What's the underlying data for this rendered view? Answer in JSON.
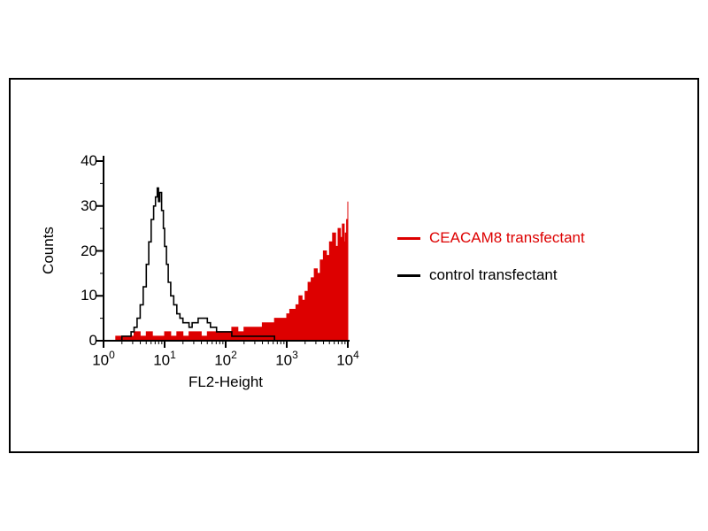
{
  "chart_data": {
    "type": "histogram",
    "title": "",
    "xlabel": "FL2-Height",
    "ylabel": "Counts",
    "x_scale": "log10",
    "x_range_decades": [
      0,
      4
    ],
    "ylim": [
      0,
      40
    ],
    "grid": false,
    "legend_position": "right-outside",
    "y_ticks": [
      "40",
      "30",
      "20",
      "10",
      "0"
    ],
    "y_tick_values": [
      40,
      30,
      20,
      10,
      0
    ],
    "x_ticks": [
      {
        "base": "10",
        "exp": "0"
      },
      {
        "base": "10",
        "exp": "1"
      },
      {
        "base": "10",
        "exp": "2"
      },
      {
        "base": "10",
        "exp": "3"
      },
      {
        "base": "10",
        "exp": "4"
      }
    ],
    "legend": [
      {
        "label": "CEACAM8 transfectant",
        "color": "#dd0000",
        "text_color": "#dd0000"
      },
      {
        "label": "control transfectant",
        "color": "#000000",
        "text_color": "#000000"
      }
    ],
    "series": [
      {
        "name": "CEACAM8 transfectant",
        "style": "filled",
        "color": "#dd0000",
        "points": [
          [
            0.0,
            0
          ],
          [
            0.2,
            1
          ],
          [
            0.4,
            1
          ],
          [
            0.5,
            2
          ],
          [
            0.6,
            1
          ],
          [
            0.7,
            2
          ],
          [
            0.8,
            1
          ],
          [
            0.9,
            1
          ],
          [
            1.0,
            2
          ],
          [
            1.1,
            1
          ],
          [
            1.2,
            2
          ],
          [
            1.3,
            1
          ],
          [
            1.4,
            2
          ],
          [
            1.5,
            2
          ],
          [
            1.6,
            1
          ],
          [
            1.7,
            2
          ],
          [
            1.8,
            2
          ],
          [
            1.9,
            2
          ],
          [
            2.0,
            2
          ],
          [
            2.1,
            3
          ],
          [
            2.2,
            2
          ],
          [
            2.3,
            3
          ],
          [
            2.4,
            3
          ],
          [
            2.5,
            3
          ],
          [
            2.6,
            4
          ],
          [
            2.7,
            4
          ],
          [
            2.8,
            5
          ],
          [
            2.9,
            5
          ],
          [
            3.0,
            6
          ],
          [
            3.05,
            7
          ],
          [
            3.1,
            7
          ],
          [
            3.15,
            8
          ],
          [
            3.2,
            10
          ],
          [
            3.25,
            9
          ],
          [
            3.3,
            11
          ],
          [
            3.35,
            13
          ],
          [
            3.4,
            14
          ],
          [
            3.45,
            16
          ],
          [
            3.5,
            15
          ],
          [
            3.55,
            18
          ],
          [
            3.6,
            20
          ],
          [
            3.65,
            19
          ],
          [
            3.7,
            22
          ],
          [
            3.75,
            24
          ],
          [
            3.8,
            21
          ],
          [
            3.84,
            25
          ],
          [
            3.88,
            23
          ],
          [
            3.91,
            26
          ],
          [
            3.94,
            22
          ],
          [
            3.96,
            24
          ],
          [
            3.98,
            27
          ],
          [
            4.0,
            31
          ]
        ]
      },
      {
        "name": "control transfectant",
        "style": "outline",
        "color": "#000000",
        "points": [
          [
            0.0,
            0
          ],
          [
            0.1,
            0
          ],
          [
            0.2,
            0
          ],
          [
            0.3,
            1
          ],
          [
            0.4,
            1
          ],
          [
            0.45,
            2
          ],
          [
            0.5,
            3
          ],
          [
            0.55,
            5
          ],
          [
            0.6,
            8
          ],
          [
            0.65,
            12
          ],
          [
            0.7,
            17
          ],
          [
            0.74,
            22
          ],
          [
            0.78,
            27
          ],
          [
            0.82,
            30
          ],
          [
            0.85,
            32
          ],
          [
            0.88,
            34
          ],
          [
            0.9,
            31
          ],
          [
            0.92,
            33
          ],
          [
            0.95,
            29
          ],
          [
            0.98,
            25
          ],
          [
            1.0,
            21
          ],
          [
            1.03,
            17
          ],
          [
            1.06,
            13
          ],
          [
            1.1,
            10
          ],
          [
            1.15,
            8
          ],
          [
            1.2,
            6
          ],
          [
            1.25,
            5
          ],
          [
            1.3,
            4
          ],
          [
            1.35,
            4
          ],
          [
            1.4,
            3
          ],
          [
            1.45,
            4
          ],
          [
            1.5,
            4
          ],
          [
            1.55,
            5
          ],
          [
            1.6,
            5
          ],
          [
            1.65,
            5
          ],
          [
            1.7,
            4
          ],
          [
            1.75,
            3
          ],
          [
            1.8,
            3
          ],
          [
            1.85,
            2
          ],
          [
            1.9,
            2
          ],
          [
            2.0,
            2
          ],
          [
            2.1,
            1
          ],
          [
            2.2,
            1
          ],
          [
            2.4,
            1
          ],
          [
            2.6,
            1
          ],
          [
            2.8,
            0
          ],
          [
            3.0,
            0
          ],
          [
            3.5,
            0
          ],
          [
            4.0,
            0
          ]
        ]
      }
    ]
  }
}
